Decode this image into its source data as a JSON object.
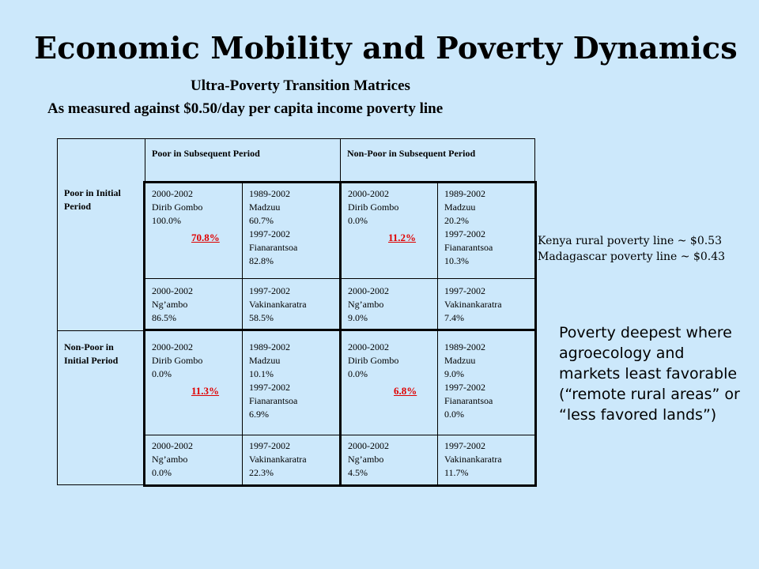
{
  "title": "Economic Mobility and Poverty Dynamics",
  "subtitle": "Ultra-Poverty Transition Matrices",
  "measure": "As measured against $0.50/day per capita income poverty line",
  "table": {
    "col_headers": [
      "Poor in Subsequent Period",
      "Non-Poor in Subsequent Period"
    ],
    "row_headers": [
      "Poor in Initial Period",
      "Non-Poor in Initial Period"
    ],
    "cells": {
      "r1": {
        "a": {
          "period": "2000-2002",
          "site": "Dirib Gombo",
          "value": "100.0%",
          "highlight": "70.8%"
        },
        "b": {
          "period": "1989-2002",
          "site": "Madzuu",
          "value": "60.7%",
          "period2": "1997-2002",
          "site2": "Fianarantsoa",
          "value2": "82.8%"
        },
        "c": {
          "period": "2000-2002",
          "site": "Dirib Gombo",
          "value": "0.0%",
          "highlight": "11.2%"
        },
        "d": {
          "period": "1989-2002",
          "site": "Madzuu",
          "value": "20.2%",
          "period2": "1997-2002",
          "site2": "Fianarantsoa",
          "value2": "10.3%"
        }
      },
      "r2": {
        "a": {
          "period": "2000-2002",
          "site": "Ng’ambo",
          "value": "86.5%"
        },
        "b": {
          "period": "1997-2002",
          "site": "Vakinankaratra",
          "value": "58.5%"
        },
        "c": {
          "period": "2000-2002",
          "site": "Ng’ambo",
          "value": "9.0%"
        },
        "d": {
          "period": "1997-2002",
          "site": "Vakinankaratra",
          "value": "7.4%"
        }
      },
      "r3": {
        "a": {
          "period": "2000-2002",
          "site": "Dirib Gombo",
          "value": "0.0%",
          "highlight": "11.3%"
        },
        "b": {
          "period": "1989-2002",
          "site": "Madzuu",
          "value": "10.1%",
          "period2": "1997-2002",
          "site2": "Fianarantsoa",
          "value2": "6.9%"
        },
        "c": {
          "period": "2000-2002",
          "site": "Dirib Gombo",
          "value": "0.0%",
          "highlight": "6.8%"
        },
        "d": {
          "period": "1989-2002",
          "site": "Madzuu",
          "value": "9.0%",
          "period2": "1997-2002",
          "site2": "Fianarantsoa",
          "value2": "0.0%"
        }
      },
      "r4": {
        "a": {
          "period": "2000-2002",
          "site": "Ng’ambo",
          "value": "0.0%"
        },
        "b": {
          "period": "1997-2002",
          "site": "Vakinankaratra",
          "value": "22.3%"
        },
        "c": {
          "period": "2000-2002",
          "site": "Ng’ambo",
          "value": "4.5%"
        },
        "d": {
          "period": "1997-2002",
          "site": "Vakinankaratra",
          "value": "11.7%"
        }
      }
    }
  },
  "notes": {
    "kenya": "Kenya rural poverty line ~ $0.53",
    "madagascar": "Madagascar poverty line ~ $0.43"
  },
  "aside": "Poverty deepest where agroecology and markets least favorable (“remote rural areas” or “less favored lands”)"
}
